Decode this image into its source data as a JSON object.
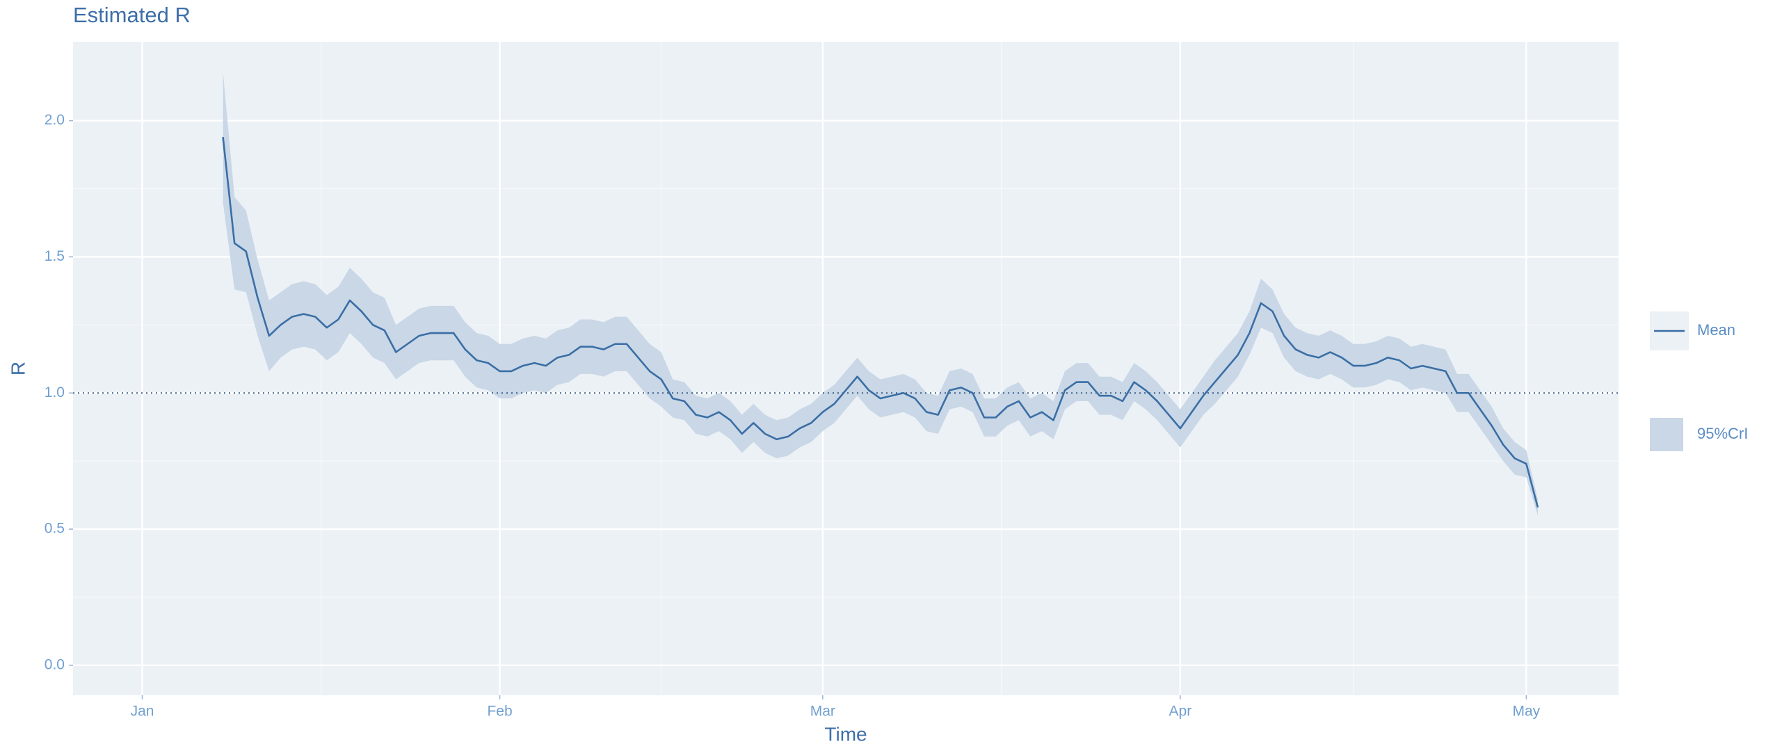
{
  "chart_data": {
    "type": "line",
    "title": "Estimated R",
    "x_label": "Time",
    "y_label": "R",
    "x": [
      7,
      8,
      9,
      10,
      11,
      12,
      13,
      14,
      15,
      16,
      17,
      18,
      19,
      20,
      21,
      22,
      23,
      24,
      25,
      26,
      27,
      28,
      29,
      30,
      31,
      32,
      33,
      34,
      35,
      36,
      37,
      38,
      39,
      40,
      41,
      42,
      43,
      44,
      45,
      46,
      47,
      48,
      49,
      50,
      51,
      52,
      53,
      54,
      55,
      56,
      57,
      58,
      59,
      60,
      61,
      62,
      63,
      64,
      65,
      66,
      67,
      68,
      69,
      70,
      71,
      72,
      73,
      74,
      75,
      76,
      77,
      78,
      79,
      80,
      81,
      82,
      83,
      84,
      85,
      86,
      87,
      88,
      89,
      90,
      91,
      92,
      93,
      94,
      95,
      96,
      97,
      98,
      99,
      100,
      101,
      102,
      103,
      104,
      105,
      106,
      107,
      108,
      109,
      110,
      111,
      112,
      113,
      114,
      115,
      116,
      117,
      118,
      119,
      120,
      121
    ],
    "series": [
      {
        "name": "Mean",
        "color": "#3a6ea5",
        "values": [
          1.94,
          1.55,
          1.52,
          1.35,
          1.21,
          1.25,
          1.28,
          1.29,
          1.28,
          1.24,
          1.27,
          1.34,
          1.3,
          1.25,
          1.23,
          1.15,
          1.18,
          1.21,
          1.22,
          1.22,
          1.22,
          1.16,
          1.12,
          1.11,
          1.08,
          1.08,
          1.1,
          1.11,
          1.1,
          1.13,
          1.14,
          1.17,
          1.17,
          1.16,
          1.18,
          1.18,
          1.13,
          1.08,
          1.05,
          0.98,
          0.97,
          0.92,
          0.91,
          0.93,
          0.9,
          0.85,
          0.89,
          0.85,
          0.83,
          0.84,
          0.87,
          0.89,
          0.93,
          0.96,
          1.01,
          1.06,
          1.01,
          0.98,
          0.99,
          1.0,
          0.98,
          0.93,
          0.92,
          1.01,
          1.02,
          1.0,
          0.91,
          0.91,
          0.95,
          0.97,
          0.91,
          0.93,
          0.9,
          1.01,
          1.04,
          1.04,
          0.99,
          0.99,
          0.97,
          1.04,
          1.01,
          0.97,
          0.92,
          0.87,
          0.93,
          0.99,
          1.04,
          1.09,
          1.14,
          1.22,
          1.33,
          1.3,
          1.21,
          1.16,
          1.14,
          1.13,
          1.15,
          1.13,
          1.1,
          1.1,
          1.11,
          1.13,
          1.12,
          1.09,
          1.1,
          1.09,
          1.08,
          1.0,
          1.0,
          0.94,
          0.88,
          0.81,
          0.76,
          0.74,
          0.58
        ]
      }
    ],
    "band": {
      "name": "95%CrI",
      "color": "#c9d7e6",
      "lower": [
        1.7,
        1.38,
        1.37,
        1.21,
        1.08,
        1.13,
        1.16,
        1.17,
        1.16,
        1.12,
        1.15,
        1.22,
        1.18,
        1.13,
        1.11,
        1.05,
        1.08,
        1.11,
        1.12,
        1.12,
        1.12,
        1.06,
        1.02,
        1.01,
        0.98,
        0.98,
        1.0,
        1.01,
        1.0,
        1.03,
        1.04,
        1.07,
        1.07,
        1.06,
        1.08,
        1.08,
        1.03,
        0.98,
        0.95,
        0.91,
        0.9,
        0.85,
        0.84,
        0.86,
        0.83,
        0.78,
        0.82,
        0.78,
        0.76,
        0.77,
        0.8,
        0.82,
        0.86,
        0.89,
        0.94,
        0.99,
        0.94,
        0.91,
        0.92,
        0.93,
        0.91,
        0.86,
        0.85,
        0.94,
        0.95,
        0.93,
        0.84,
        0.84,
        0.88,
        0.9,
        0.84,
        0.86,
        0.83,
        0.94,
        0.97,
        0.97,
        0.92,
        0.92,
        0.9,
        0.97,
        0.94,
        0.9,
        0.85,
        0.8,
        0.86,
        0.92,
        0.96,
        1.01,
        1.06,
        1.14,
        1.24,
        1.22,
        1.13,
        1.08,
        1.06,
        1.05,
        1.07,
        1.05,
        1.02,
        1.02,
        1.03,
        1.05,
        1.04,
        1.01,
        1.02,
        1.01,
        1.0,
        0.93,
        0.93,
        0.87,
        0.81,
        0.75,
        0.7,
        0.69,
        0.55
      ],
      "upper": [
        2.18,
        1.72,
        1.67,
        1.49,
        1.34,
        1.37,
        1.4,
        1.41,
        1.4,
        1.36,
        1.39,
        1.46,
        1.42,
        1.37,
        1.35,
        1.25,
        1.28,
        1.31,
        1.32,
        1.32,
        1.32,
        1.26,
        1.22,
        1.21,
        1.18,
        1.18,
        1.2,
        1.21,
        1.2,
        1.23,
        1.24,
        1.27,
        1.27,
        1.26,
        1.28,
        1.28,
        1.23,
        1.18,
        1.15,
        1.05,
        1.04,
        0.99,
        0.98,
        1.0,
        0.97,
        0.92,
        0.96,
        0.92,
        0.9,
        0.91,
        0.94,
        0.96,
        1.0,
        1.03,
        1.08,
        1.13,
        1.08,
        1.05,
        1.06,
        1.07,
        1.05,
        1.0,
        0.99,
        1.08,
        1.09,
        1.07,
        0.98,
        0.98,
        1.02,
        1.04,
        0.98,
        1.0,
        0.97,
        1.08,
        1.11,
        1.11,
        1.06,
        1.06,
        1.04,
        1.11,
        1.08,
        1.04,
        0.99,
        0.94,
        1.0,
        1.06,
        1.12,
        1.17,
        1.22,
        1.3,
        1.42,
        1.38,
        1.29,
        1.24,
        1.22,
        1.21,
        1.23,
        1.21,
        1.18,
        1.18,
        1.19,
        1.21,
        1.2,
        1.17,
        1.18,
        1.17,
        1.16,
        1.07,
        1.07,
        1.01,
        0.95,
        0.87,
        0.82,
        0.79,
        0.61
      ]
    },
    "reference_line": 1,
    "xlim": [
      -6,
      128
    ],
    "xticks": [
      {
        "value": 0,
        "label": "Jan"
      },
      {
        "value": 31,
        "label": "Feb"
      },
      {
        "value": 59,
        "label": "Mar"
      },
      {
        "value": 90,
        "label": "Apr"
      },
      {
        "value": 120,
        "label": "May"
      }
    ],
    "ylim": [
      -0.11,
      2.29
    ],
    "yticks": [
      {
        "value": 0,
        "label": "0.0"
      },
      {
        "value": 0.5,
        "label": "0.5"
      },
      {
        "value": 1,
        "label": "1.0"
      },
      {
        "value": 1.5,
        "label": "1.5"
      },
      {
        "value": 2,
        "label": "2.0"
      }
    ],
    "grid": true,
    "legend": "right"
  }
}
